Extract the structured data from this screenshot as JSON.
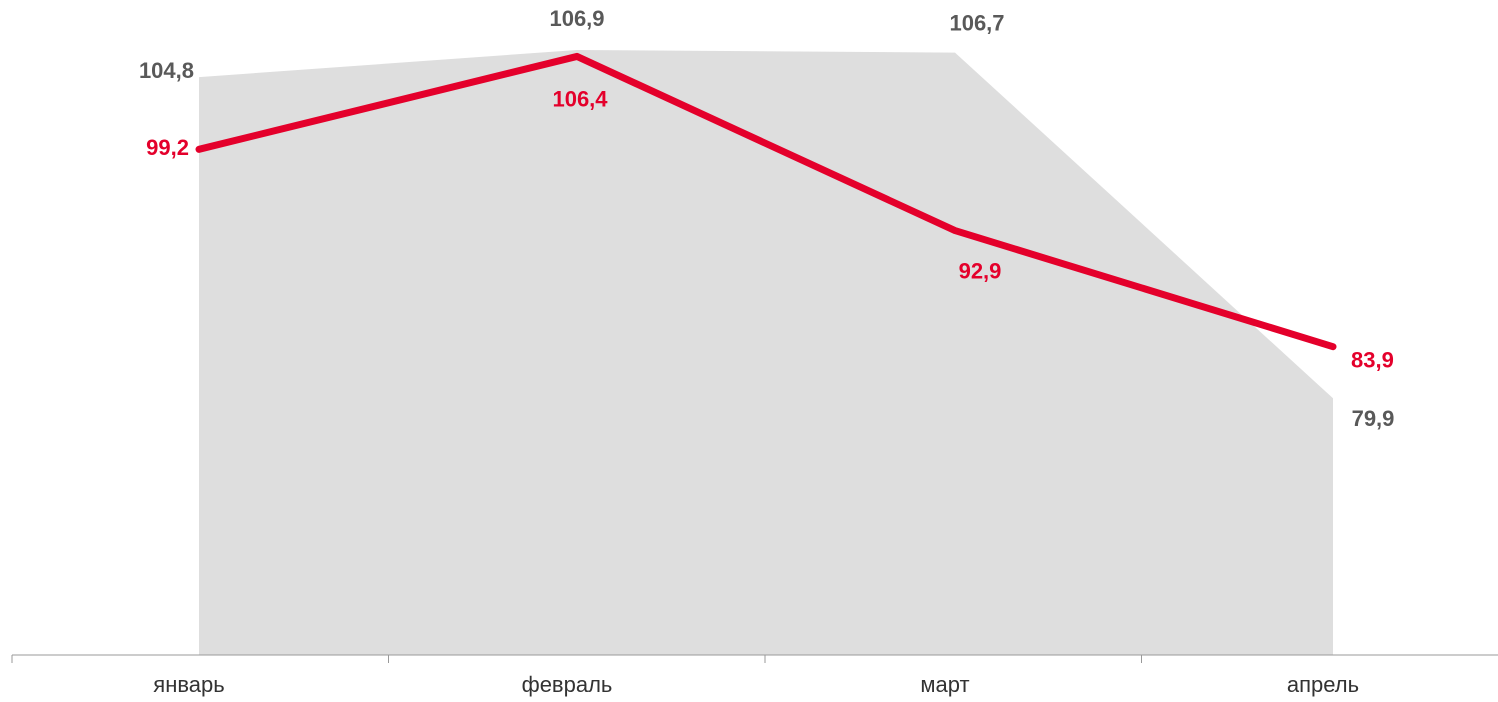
{
  "chart_data": {
    "type": "line",
    "categories": [
      "январь",
      "февраль",
      "март",
      "апрель"
    ],
    "ylim": [
      60,
      110
    ],
    "grid": false,
    "series": [
      {
        "type": "area",
        "color": "#dedede",
        "label_color": "#595959",
        "values": [
          104.8,
          106.9,
          106.7,
          79.9
        ],
        "value_labels": [
          "104,8",
          "106,9",
          "106,7",
          "79,9"
        ]
      },
      {
        "type": "line",
        "color": "#e4002b",
        "label_color": "#e4002b",
        "values": [
          99.2,
          106.4,
          92.9,
          83.9
        ],
        "value_labels": [
          "99,2",
          "106,4",
          "92,9",
          "83,9"
        ]
      }
    ]
  }
}
